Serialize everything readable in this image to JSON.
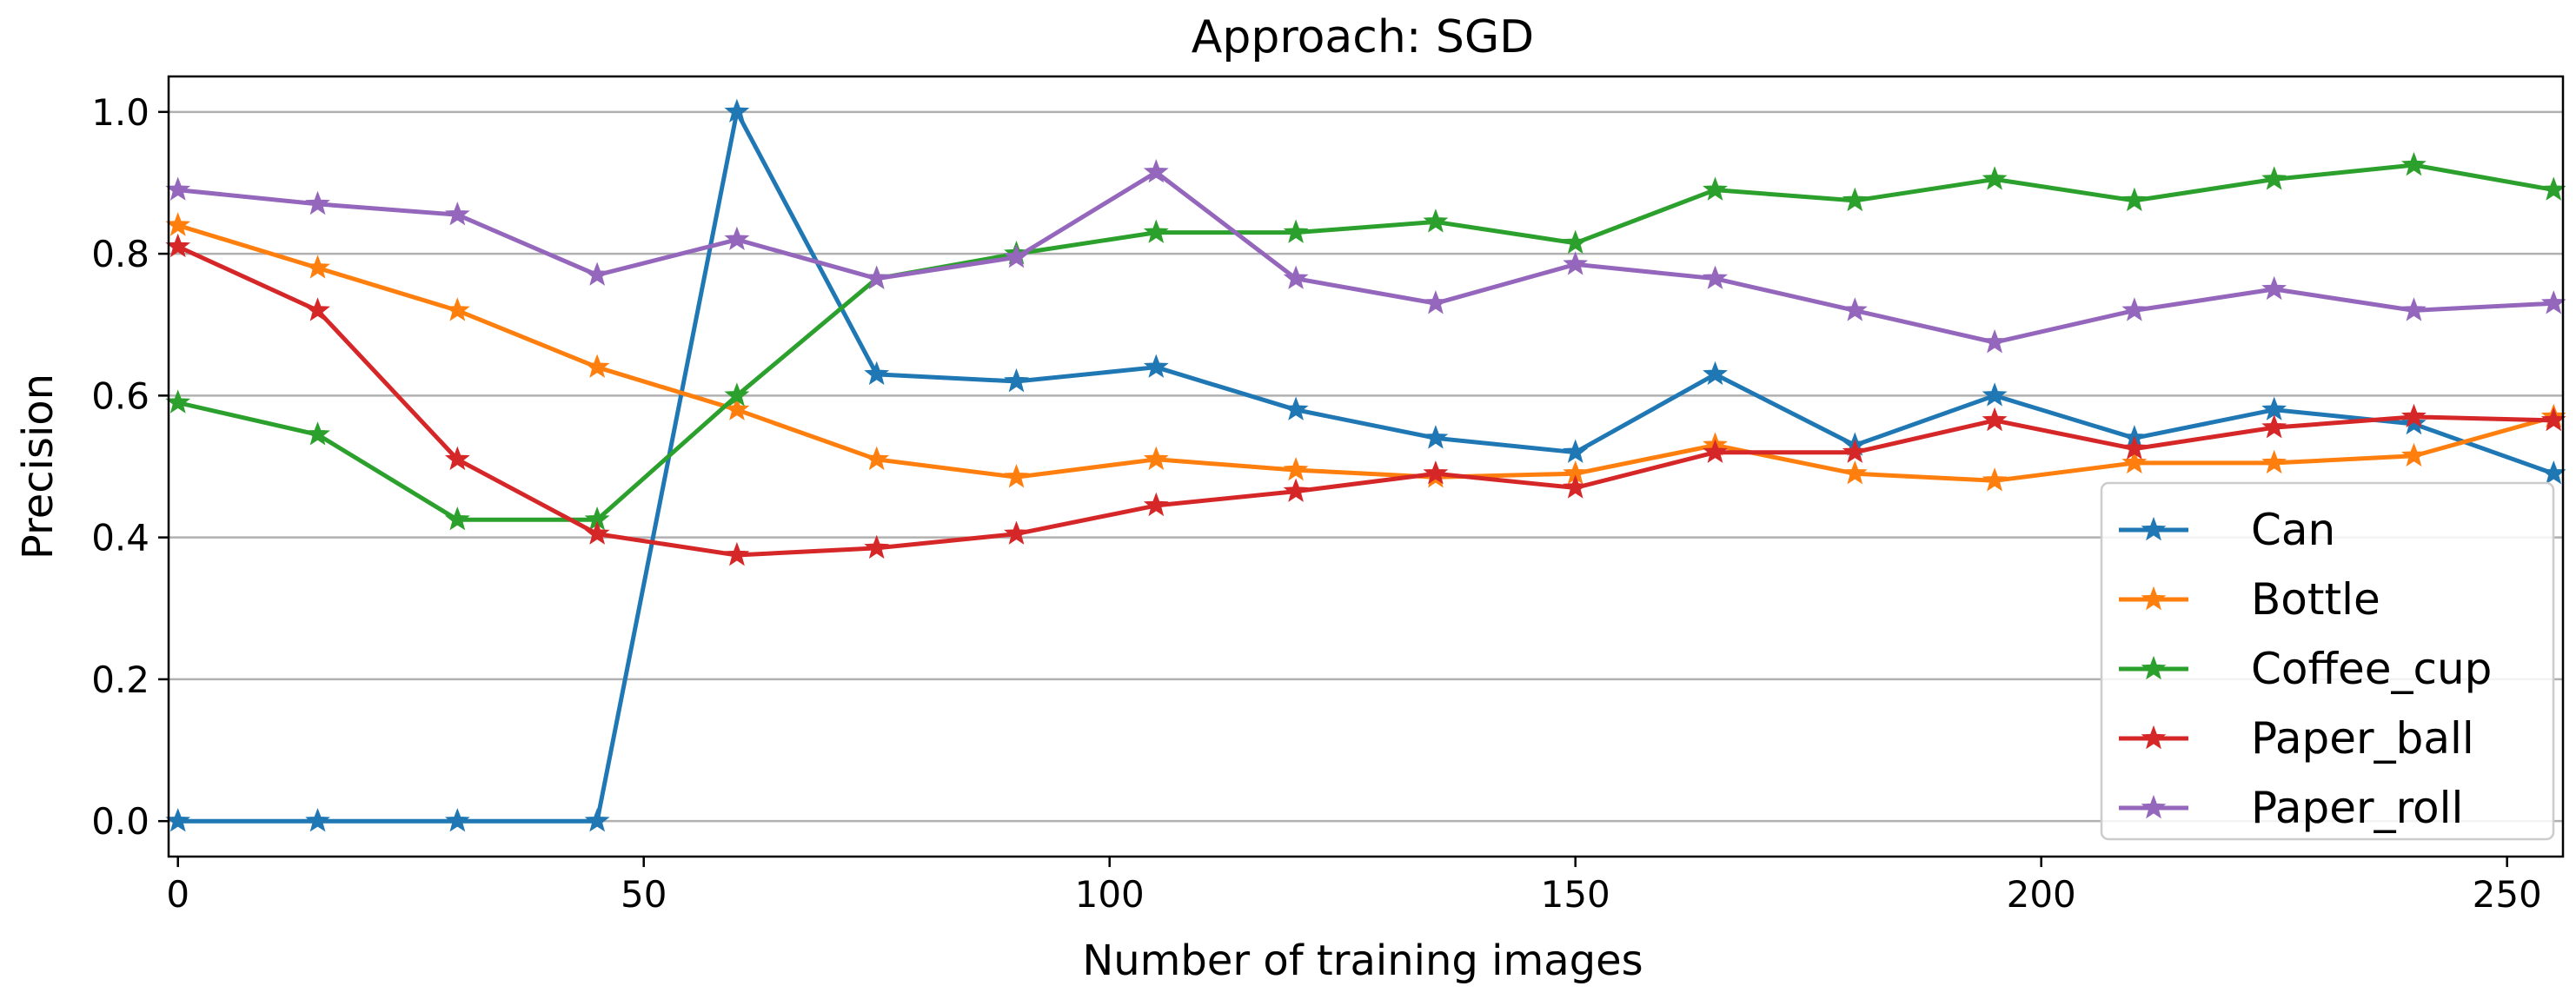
{
  "chart_data": {
    "type": "line",
    "title": "Approach: SGD",
    "xlabel": "Number of training images",
    "ylabel": "Precision",
    "xlim": [
      -1,
      256
    ],
    "ylim": [
      -0.05,
      1.05
    ],
    "xticks": [
      0,
      50,
      100,
      150,
      200,
      250
    ],
    "yticks": [
      0.0,
      0.2,
      0.4,
      0.6,
      0.8,
      1.0
    ],
    "xtick_labels": [
      "0",
      "50",
      "100",
      "150",
      "200",
      "250"
    ],
    "ytick_labels": [
      "0.0",
      "0.2",
      "0.4",
      "0.6",
      "0.8",
      "1.0"
    ],
    "grid": "horizontal",
    "legend_position": "lower-right",
    "marker": "star",
    "x": [
      0,
      15,
      30,
      45,
      60,
      75,
      90,
      105,
      120,
      135,
      150,
      165,
      180,
      195,
      210,
      225,
      240,
      255
    ],
    "series": [
      {
        "name": "Can",
        "color": "#1f77b4",
        "values": [
          0.0,
          0.0,
          0.0,
          0.0,
          1.0,
          0.63,
          0.62,
          0.64,
          0.58,
          0.54,
          0.52,
          0.63,
          0.53,
          0.6,
          0.54,
          0.58,
          0.56,
          0.49
        ]
      },
      {
        "name": "Bottle",
        "color": "#ff7f0e",
        "values": [
          0.84,
          0.78,
          0.72,
          0.64,
          0.58,
          0.51,
          0.485,
          0.51,
          0.495,
          0.485,
          0.49,
          0.53,
          0.49,
          0.48,
          0.505,
          0.505,
          0.515,
          0.57
        ]
      },
      {
        "name": "Coffee_cup",
        "color": "#2ca02c",
        "values": [
          0.59,
          0.545,
          0.425,
          0.425,
          0.6,
          0.765,
          0.8,
          0.83,
          0.83,
          0.845,
          0.815,
          0.89,
          0.875,
          0.905,
          0.875,
          0.905,
          0.925,
          0.89
        ]
      },
      {
        "name": "Paper_ball",
        "color": "#d62728",
        "values": [
          0.81,
          0.72,
          0.51,
          0.405,
          0.375,
          0.385,
          0.405,
          0.445,
          0.465,
          0.49,
          0.47,
          0.52,
          0.52,
          0.565,
          0.525,
          0.555,
          0.57,
          0.565
        ]
      },
      {
        "name": "Paper_roll",
        "color": "#9467bd",
        "values": [
          0.89,
          0.87,
          0.855,
          0.77,
          0.82,
          0.765,
          0.795,
          0.915,
          0.765,
          0.73,
          0.785,
          0.765,
          0.72,
          0.675,
          0.72,
          0.75,
          0.72,
          0.73
        ]
      }
    ]
  }
}
